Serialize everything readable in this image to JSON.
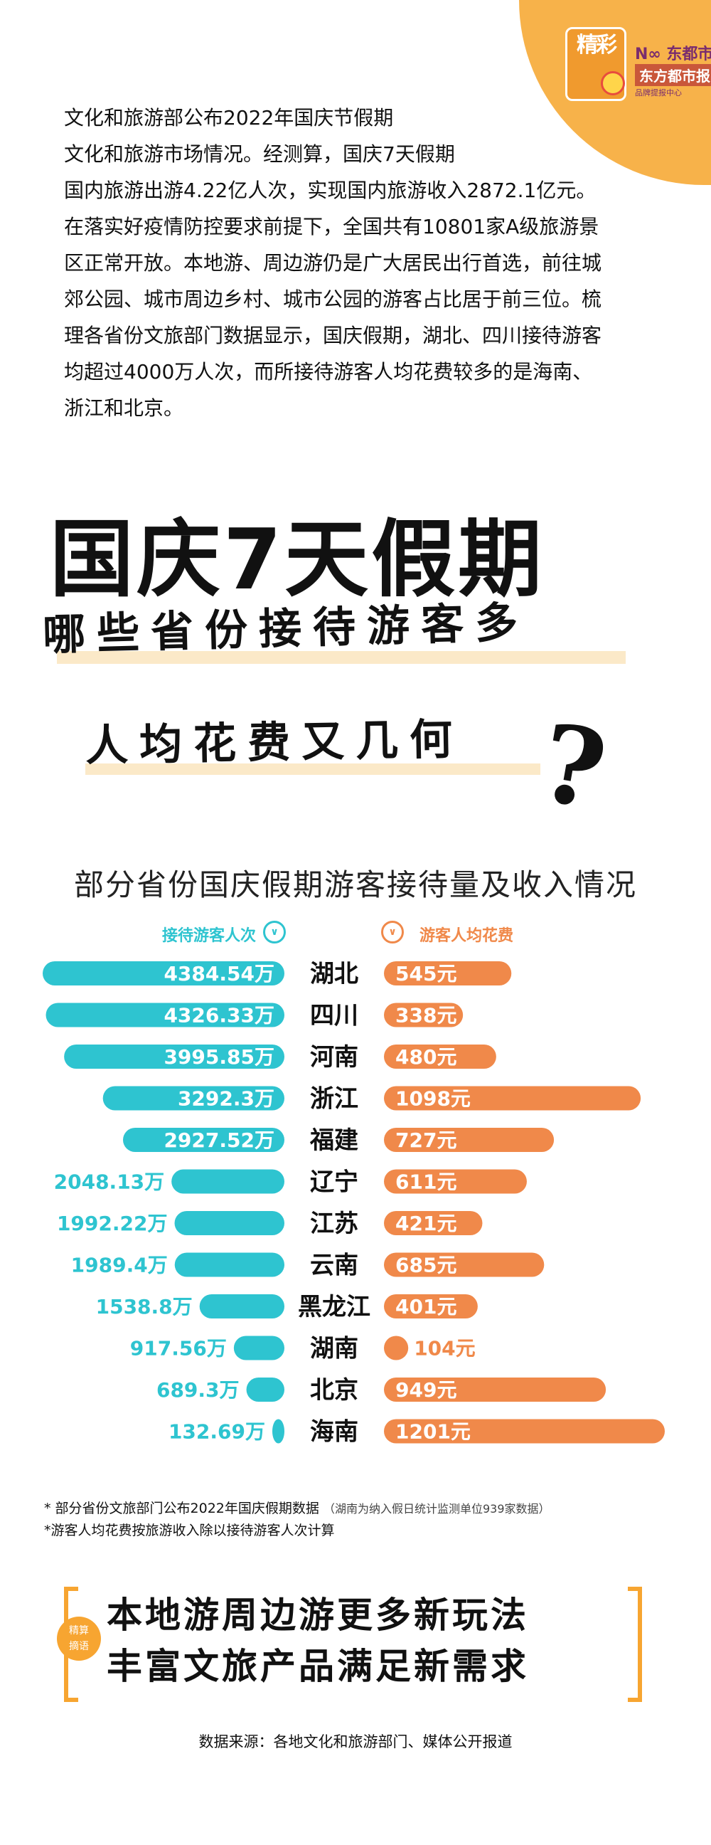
{
  "header": {
    "logo_text": "精彩",
    "brand_line1": "N∞ 东都市快",
    "brand_line2": "东方都市报",
    "brand_line3": "品牌提报中心"
  },
  "intro": [
    "文化和旅游部公布2022年国庆节假期",
    "文化和旅游市场情况。经测算，国庆7天假期",
    "国内旅游出游4.22亿人次，实现国内旅游收入2872.1亿元。",
    "在落实好疫情防控要求前提下，全国共有10801家A级旅游景",
    "区正常开放。本地游、周边游仍是广大居民出行首选，前往城",
    "郊公园、城市周边乡村、城市公园的游客占比居于前三位。梳",
    "理各省份文旅部门数据显示，国庆假期，湖北、四川接待游客",
    "均超过4000万人次，而所接待游客人均花费较多的是海南、",
    "浙江和北京。"
  ],
  "title": "国庆7天假期",
  "subtitle1": "哪些省份接待游客多",
  "subtitle2": "人均花费又几何",
  "question_mark": "?",
  "chart_data": {
    "type": "bar",
    "title": "部分省份国庆假期游客接待量及收入情况",
    "categories": [
      "湖北",
      "四川",
      "河南",
      "浙江",
      "福建",
      "辽宁",
      "江苏",
      "云南",
      "黑龙江",
      "湖南",
      "北京",
      "海南"
    ],
    "series": [
      {
        "name": "接待游客人次",
        "unit": "万",
        "color": "#2ec4d0",
        "values": [
          4384.54,
          4326.33,
          3995.85,
          3292.3,
          2927.52,
          2048.13,
          1992.22,
          1989.4,
          1538.8,
          917.56,
          689.3,
          132.69
        ],
        "labels": [
          "4384.54万",
          "4326.33万",
          "3995.85万",
          "3292.3万",
          "2927.52万",
          "2048.13万",
          "1992.22万",
          "1989.4万",
          "1538.8万",
          "917.56万",
          "689.3万",
          "132.69万"
        ]
      },
      {
        "name": "游客人均花费",
        "unit": "元",
        "color": "#f0894a",
        "values": [
          545,
          338,
          480,
          1098,
          727,
          611,
          421,
          685,
          401,
          104,
          949,
          1201
        ],
        "labels": [
          "545元",
          "338元",
          "480元",
          "1098元",
          "727元",
          "611元",
          "421元",
          "685元",
          "401元",
          "104元",
          "949元",
          "1201元"
        ]
      }
    ]
  },
  "legend": {
    "left_label": "接待游客人次",
    "right_label": "游客人均花费",
    "icon_glyph": "∨"
  },
  "notes": {
    "line1": "* 部分省份文旅部门公布2022年国庆假期数据",
    "line1_small": "（湖南为纳入假日统计监测单位939家数据）",
    "line2": "*游客人均花费按旅游收入除以接待游客人次计算"
  },
  "summary": {
    "tag": "精算\n摘语",
    "line1": "本地游周边游更多新玩法",
    "line2": "丰富文旅产品满足新需求"
  },
  "source": "数据来源：各地文化和旅游部门、媒体公开报道"
}
